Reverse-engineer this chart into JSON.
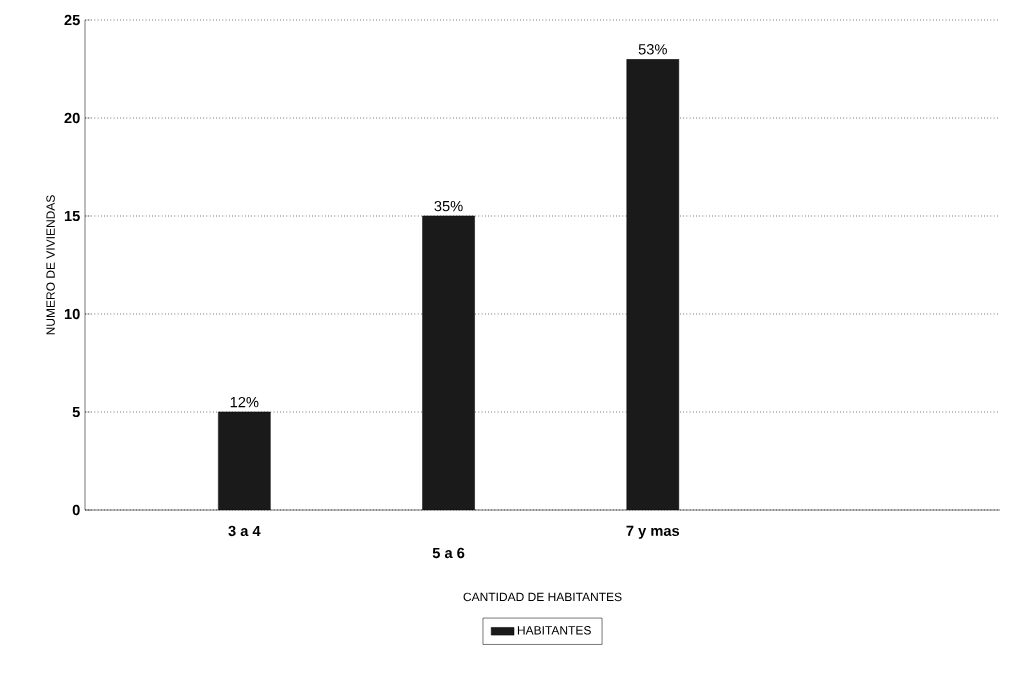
{
  "chart_data": {
    "type": "bar",
    "xlabel": "CANTIDAD DE HABITANTES",
    "ylabel": "NUMERO DE VIVIENDAS",
    "categories": [
      "3 a 4",
      "5 a 6",
      "7 y mas"
    ],
    "series": [
      {
        "name": "HABITANTES",
        "color": "#1a1a1a",
        "values": [
          5,
          15,
          23
        ]
      }
    ],
    "value_labels": [
      "12%",
      "35%",
      "53%"
    ],
    "ylim": [
      0,
      25
    ],
    "yticks": [
      0,
      5,
      10,
      15,
      20,
      25
    ],
    "grid": "y",
    "legend": "bottom"
  }
}
